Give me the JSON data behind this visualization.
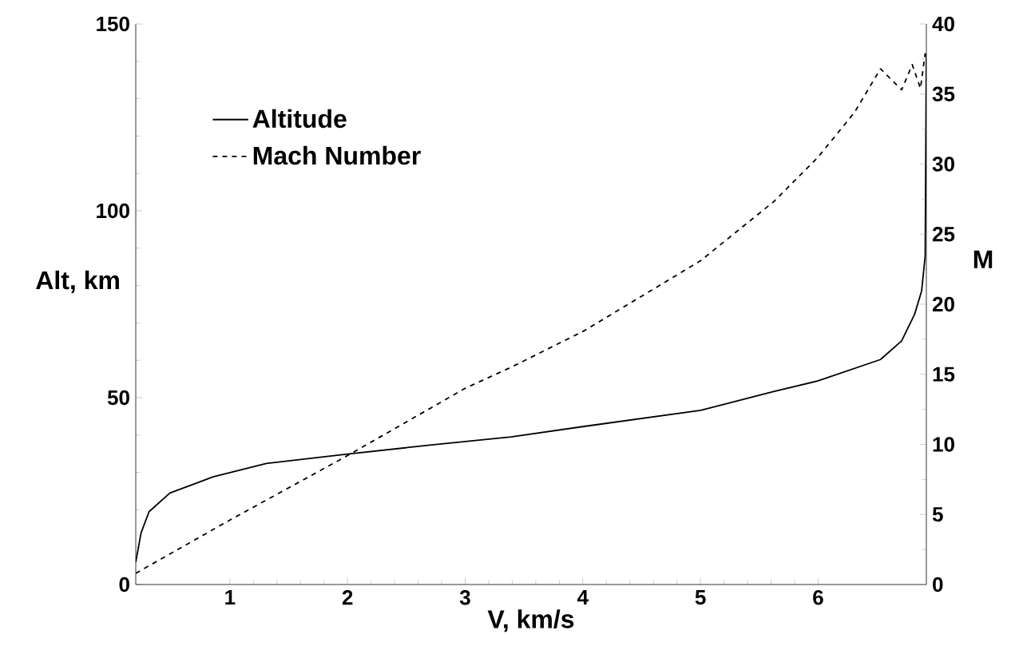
{
  "chart_data": {
    "type": "line",
    "xlabel": "V, km/s",
    "ylabel": "Alt, km",
    "y2label": "M",
    "xlim": [
      0.2,
      6.92
    ],
    "xticks": [
      1,
      2,
      3,
      4,
      5,
      6
    ],
    "ylim": [
      0,
      150
    ],
    "yticks": [
      0,
      50,
      100,
      150
    ],
    "y2lim": [
      0,
      40
    ],
    "y2ticks": [
      0,
      5,
      10,
      15,
      20,
      25,
      30,
      35,
      40
    ],
    "legend": "top left",
    "grid": false,
    "series": [
      {
        "name": "Altitude",
        "color": "#000000",
        "line_style": "solid",
        "x": [
          0.2,
          0.245,
          0.313,
          0.49,
          0.857,
          1.31,
          2.0,
          2.7,
          3.39,
          4.01,
          5.0,
          5.62,
          6.0,
          6.53,
          6.71,
          6.82,
          6.88,
          6.91,
          6.92,
          6.92
        ],
        "values": [
          6,
          13.8,
          19.5,
          24.5,
          28.8,
          32.4,
          34.9,
          37.3,
          39.5,
          42.3,
          46.6,
          51.6,
          54.5,
          60.2,
          65.2,
          72.3,
          78.6,
          87.9,
          142,
          115
        ]
      },
      {
        "name": "Mach Number",
        "color": "#000000",
        "line_style": "dashed",
        "axis": "y2",
        "x": [
          0.2,
          1.0,
          2.0,
          3.0,
          3.39,
          4.01,
          5.0,
          5.62,
          6.0,
          6.31,
          6.53,
          6.71,
          6.8,
          6.87,
          6.91
        ],
        "values": [
          0.8,
          4.6,
          9.2,
          14.0,
          15.5,
          18.1,
          23.1,
          27.3,
          30.5,
          33.7,
          36.8,
          35.3,
          37.1,
          35.4,
          37.9
        ]
      }
    ]
  }
}
